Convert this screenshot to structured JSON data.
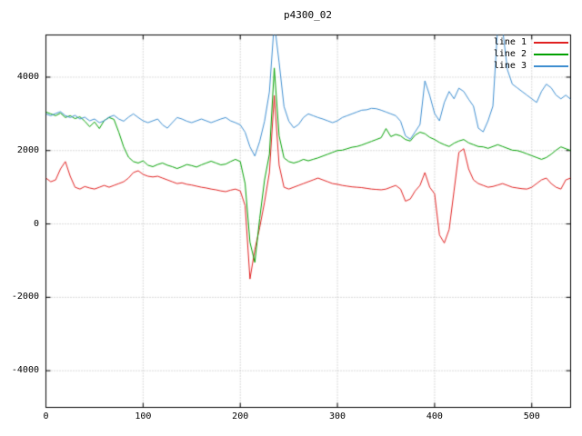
{
  "chart_data": {
    "type": "line",
    "title": "p4300_02",
    "xlabel": "",
    "ylabel": "",
    "xlim": [
      0,
      540
    ],
    "ylim": [
      -5000,
      5150
    ],
    "x_ticks": [
      0,
      100,
      200,
      300,
      400,
      500
    ],
    "y_ticks": [
      -4000,
      -2000,
      0,
      2000,
      4000
    ],
    "grid": true,
    "grid_style": "dotted",
    "grid_color": "#b4b4b4",
    "background_color": "#ffffff",
    "border_color": "#000000",
    "legend_position": "top-right-inside",
    "x_start": 0,
    "x_step": 5,
    "series": [
      {
        "name": "line 1",
        "color": "#e02020",
        "values": [
          1250,
          1150,
          1200,
          1500,
          1700,
          1300,
          1000,
          950,
          1020,
          980,
          950,
          1000,
          1050,
          1000,
          1050,
          1100,
          1150,
          1250,
          1400,
          1450,
          1350,
          1300,
          1280,
          1300,
          1250,
          1200,
          1150,
          1100,
          1120,
          1080,
          1060,
          1030,
          1000,
          980,
          950,
          930,
          900,
          880,
          920,
          950,
          900,
          500,
          -1500,
          -700,
          -100,
          600,
          1400,
          3500,
          1600,
          1000,
          950,
          1000,
          1050,
          1100,
          1150,
          1200,
          1250,
          1200,
          1150,
          1100,
          1080,
          1050,
          1030,
          1010,
          1000,
          990,
          970,
          950,
          940,
          930,
          950,
          1000,
          1050,
          950,
          620,
          680,
          900,
          1050,
          1400,
          1000,
          820,
          -300,
          -520,
          -150,
          900,
          1950,
          2050,
          1500,
          1200,
          1100,
          1050,
          1000,
          1020,
          1060,
          1100,
          1050,
          1000,
          980,
          960,
          950,
          1000,
          1100,
          1200,
          1250,
          1100,
          1000,
          950,
          1200,
          1250
        ]
      },
      {
        "name": "line 2",
        "color": "#00a000",
        "values": [
          3050,
          3000,
          2950,
          3020,
          2900,
          2950,
          2870,
          2920,
          2800,
          2650,
          2780,
          2600,
          2820,
          2900,
          2850,
          2500,
          2100,
          1820,
          1700,
          1660,
          1720,
          1600,
          1560,
          1620,
          1660,
          1600,
          1560,
          1510,
          1560,
          1620,
          1590,
          1550,
          1610,
          1660,
          1710,
          1660,
          1610,
          1630,
          1700,
          1760,
          1700,
          1100,
          -500,
          -1050,
          150,
          1200,
          1900,
          4250,
          2400,
          1800,
          1700,
          1660,
          1700,
          1760,
          1720,
          1760,
          1800,
          1850,
          1900,
          1950,
          2000,
          2010,
          2050,
          2090,
          2110,
          2150,
          2200,
          2250,
          2300,
          2350,
          2600,
          2380,
          2440,
          2400,
          2300,
          2260,
          2420,
          2500,
          2460,
          2360,
          2300,
          2220,
          2160,
          2110,
          2200,
          2260,
          2300,
          2210,
          2160,
          2110,
          2100,
          2060,
          2110,
          2160,
          2110,
          2060,
          2010,
          2000,
          1960,
          1910,
          1860,
          1810,
          1760,
          1810,
          1900,
          2010,
          2100,
          2050,
          2000
        ]
      },
      {
        "name": "line 3",
        "color": "#3e8ed0",
        "values": [
          3000,
          2950,
          3010,
          3060,
          2950,
          2900,
          2960,
          2860,
          2910,
          2810,
          2860,
          2760,
          2810,
          2910,
          2960,
          2860,
          2800,
          2910,
          3000,
          2900,
          2810,
          2760,
          2810,
          2860,
          2700,
          2610,
          2760,
          2900,
          2860,
          2800,
          2760,
          2810,
          2860,
          2810,
          2760,
          2810,
          2860,
          2900,
          2810,
          2760,
          2700,
          2500,
          2100,
          1850,
          2250,
          2800,
          3600,
          5500,
          4400,
          3200,
          2800,
          2620,
          2710,
          2900,
          3000,
          2950,
          2900,
          2860,
          2810,
          2760,
          2810,
          2900,
          2950,
          3000,
          3050,
          3100,
          3110,
          3150,
          3140,
          3100,
          3050,
          3000,
          2950,
          2800,
          2400,
          2310,
          2510,
          2710,
          3900,
          3500,
          3010,
          2810,
          3310,
          3610,
          3410,
          3700,
          3610,
          3400,
          3210,
          2610,
          2510,
          2810,
          3210,
          5400,
          5300,
          4200,
          3810,
          3710,
          3610,
          3510,
          3410,
          3310,
          3610,
          3810,
          3710,
          3510,
          3410,
          3510,
          3400
        ]
      }
    ]
  }
}
